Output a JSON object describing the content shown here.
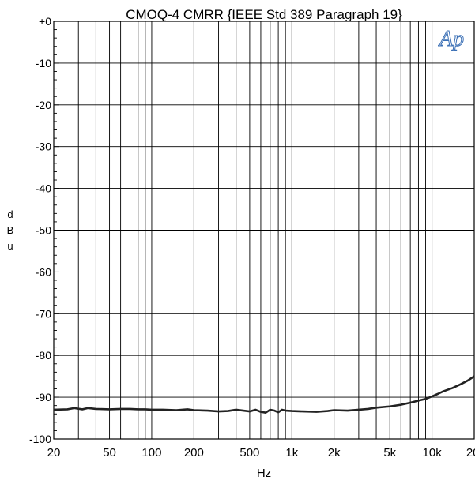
{
  "chart_data": {
    "type": "line",
    "title": "CMOQ-4   CMRR  {IEEE Std 389 Paragraph 19}",
    "xlabel": "Hz",
    "ylabel": "d B u",
    "x_scale": "log",
    "xlim": [
      20,
      20000
    ],
    "ylim": [
      -100,
      0
    ],
    "grid": true,
    "legend": "none",
    "x_ticks": [
      {
        "value": 20,
        "label": "20"
      },
      {
        "value": 50,
        "label": "50"
      },
      {
        "value": 100,
        "label": "100"
      },
      {
        "value": 200,
        "label": "200"
      },
      {
        "value": 500,
        "label": "500"
      },
      {
        "value": 1000,
        "label": "1k"
      },
      {
        "value": 2000,
        "label": "2k"
      },
      {
        "value": 5000,
        "label": "5k"
      },
      {
        "value": 10000,
        "label": "10k"
      },
      {
        "value": 20000,
        "label": "20k"
      }
    ],
    "y_ticks": [
      {
        "value": 0,
        "label": "+0"
      },
      {
        "value": -10,
        "label": "-10"
      },
      {
        "value": -20,
        "label": "-20"
      },
      {
        "value": -30,
        "label": "-30"
      },
      {
        "value": -40,
        "label": "-40"
      },
      {
        "value": -50,
        "label": "-50"
      },
      {
        "value": -60,
        "label": "-60"
      },
      {
        "value": -70,
        "label": "-70"
      },
      {
        "value": -80,
        "label": "-80"
      },
      {
        "value": -90,
        "label": "-90"
      },
      {
        "value": -100,
        "label": "-100"
      }
    ],
    "series": [
      {
        "line_color": "#222222",
        "x": [
          20,
          25,
          28,
          32,
          35,
          40,
          50,
          60,
          70,
          80,
          90,
          100,
          120,
          150,
          180,
          200,
          250,
          300,
          350,
          400,
          450,
          500,
          550,
          600,
          650,
          700,
          750,
          800,
          850,
          900,
          1000,
          1200,
          1500,
          1800,
          2000,
          2500,
          3000,
          3500,
          4000,
          5000,
          6000,
          7000,
          8000,
          9000,
          10000,
          11000,
          12000,
          14000,
          16000,
          18000,
          20000
        ],
        "y": [
          -93.0,
          -92.9,
          -92.6,
          -92.9,
          -92.6,
          -92.8,
          -92.9,
          -92.8,
          -92.8,
          -92.9,
          -92.9,
          -93.0,
          -93.0,
          -93.1,
          -92.9,
          -93.1,
          -93.2,
          -93.4,
          -93.3,
          -93.0,
          -93.2,
          -93.4,
          -93.0,
          -93.5,
          -93.7,
          -93.0,
          -93.2,
          -93.6,
          -93.0,
          -93.2,
          -93.3,
          -93.4,
          -93.5,
          -93.3,
          -93.1,
          -93.2,
          -93.0,
          -92.8,
          -92.5,
          -92.2,
          -91.8,
          -91.3,
          -90.8,
          -90.4,
          -89.8,
          -89.2,
          -88.6,
          -87.8,
          -86.9,
          -86.0,
          -85.0
        ]
      }
    ]
  },
  "logo": {
    "text": "Ap",
    "color": "#3a6fb5"
  }
}
